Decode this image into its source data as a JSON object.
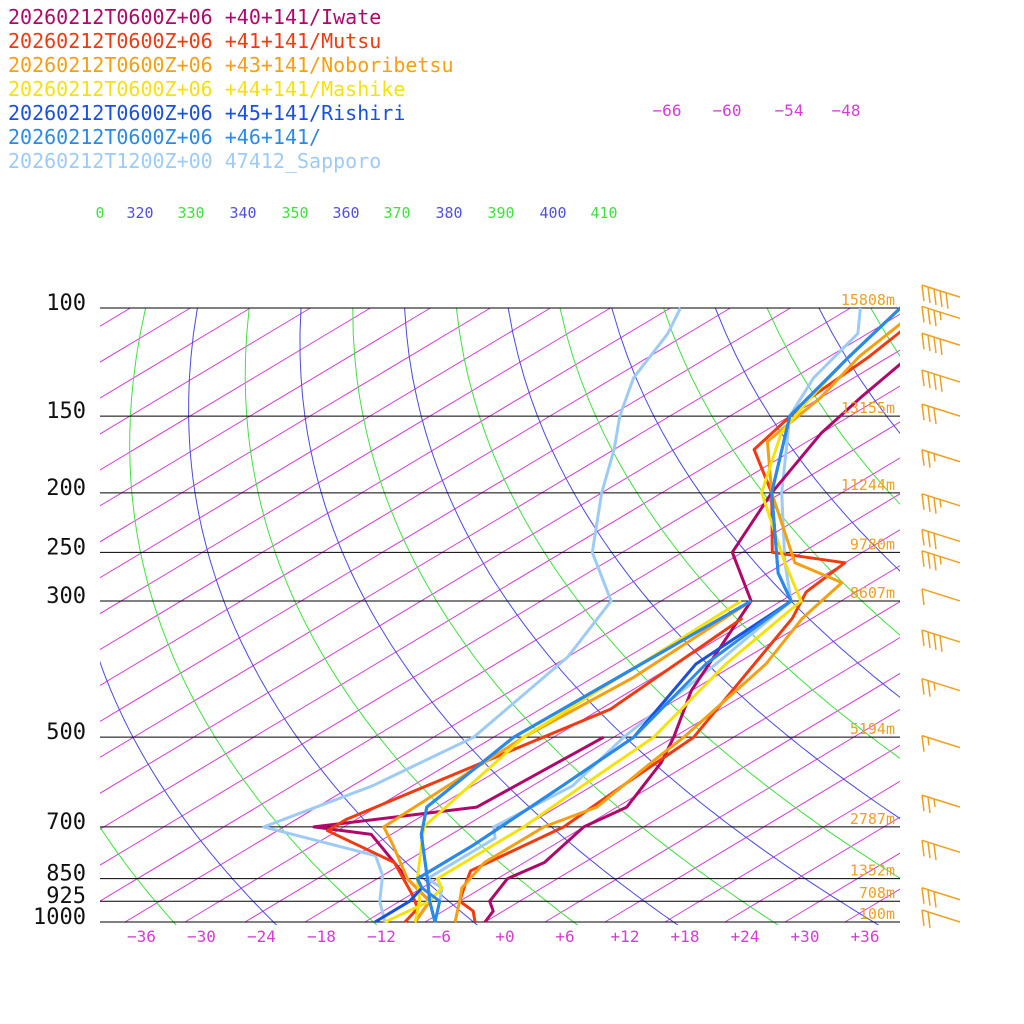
{
  "chart_data": {
    "type": "line",
    "subtype": "skew-t log-p sounding",
    "legend": [
      {
        "label": "20260212T0600Z+06 +40+141/Iwate",
        "color": "#b0086a"
      },
      {
        "label": "20260212T0600Z+06 +41+141/Mutsu",
        "color": "#f03a10"
      },
      {
        "label": "20260212T0600Z+06 +43+141/Noboribetsu",
        "color": "#f5a010"
      },
      {
        "label": "20260212T0600Z+06 +44+141/Mashike",
        "color": "#f5e20c"
      },
      {
        "label": "20260212T0600Z+06 +45+141/Rishiri",
        "color": "#1a50e0"
      },
      {
        "label": "20260212T0600Z+06 +46+141/",
        "color": "#2a8ae8"
      },
      {
        "label": "20260212T1200Z+00 47412_Sapporo",
        "color": "#9ecbf5"
      }
    ],
    "pressure_levels": [
      {
        "p": 100,
        "label": "100",
        "height": "15808m"
      },
      {
        "p": 150,
        "label": "150",
        "height": "13155m"
      },
      {
        "p": 200,
        "label": "200",
        "height": "11244m"
      },
      {
        "p": 250,
        "label": "250",
        "height": "9780m"
      },
      {
        "p": 300,
        "label": "300",
        "height": "8607m"
      },
      {
        "p": 500,
        "label": "500",
        "height": "5194m"
      },
      {
        "p": 700,
        "label": "700",
        "height": "2787m"
      },
      {
        "p": 850,
        "label": "850",
        "height": "1352m"
      },
      {
        "p": 925,
        "label": "925",
        "height": "708m"
      },
      {
        "p": 1000,
        "label": "1000",
        "height": "100m"
      }
    ],
    "x_ticks": [
      "−36",
      "−30",
      "−24",
      "−18",
      "−12",
      "−6",
      "+0",
      "+6",
      "+12",
      "+18",
      "+24",
      "+30",
      "+36"
    ],
    "top_ticks": [
      "−66",
      "−60",
      "−54",
      "−48"
    ],
    "theta_labels": [
      {
        "text": "0",
        "color": "#3ee23e"
      },
      {
        "text": "320",
        "color": "#5050e0"
      },
      {
        "text": "330",
        "color": "#3ee23e"
      },
      {
        "text": "340",
        "color": "#5050e0"
      },
      {
        "text": "350",
        "color": "#3ee23e"
      },
      {
        "text": "360",
        "color": "#5050e0"
      },
      {
        "text": "370",
        "color": "#3ee23e"
      },
      {
        "text": "380",
        "color": "#5050e0"
      },
      {
        "text": "390",
        "color": "#3ee23e"
      },
      {
        "text": "400",
        "color": "#5050e0"
      },
      {
        "text": "410",
        "color": "#3ee23e"
      }
    ],
    "x_range": [
      -40,
      40
    ],
    "p_range": [
      100,
      1000
    ],
    "log_pressure": true,
    "series": [
      {
        "name": "20260212T0600Z+06 +40+141/Iwate",
        "color": "#b0086a",
        "temperature": [
          [
            -2,
            1000
          ],
          [
            -3,
            960
          ],
          [
            -5,
            925
          ],
          [
            -7,
            850
          ],
          [
            -6,
            800
          ],
          [
            -8,
            700
          ],
          [
            -7,
            650
          ],
          [
            -11,
            550
          ],
          [
            -14,
            500
          ],
          [
            -20,
            420
          ],
          [
            -29,
            300
          ],
          [
            -39,
            250
          ],
          [
            -45,
            200
          ],
          [
            -50,
            160
          ],
          [
            -52,
            140
          ],
          [
            -54,
            120
          ],
          [
            -58,
            100
          ],
          [
            -63,
            85
          ],
          [
            -77,
            60
          ],
          [
            -84,
            40
          ]
        ],
        "dewpoint": [
          [
            -9,
            1000
          ],
          [
            -11,
            925
          ],
          [
            -17,
            850
          ],
          [
            -28,
            720
          ],
          [
            -35,
            700
          ],
          [
            -22,
            650
          ],
          [
            -21,
            500
          ]
        ]
      },
      {
        "name": "20260212T0600Z+06 +41+141/Mutsu",
        "color": "#f03a10",
        "temperature": [
          [
            -3,
            1000
          ],
          [
            -5,
            960
          ],
          [
            -8,
            925
          ],
          [
            -10,
            875
          ],
          [
            -12,
            825
          ],
          [
            -10,
            700
          ],
          [
            -11,
            600
          ],
          [
            -12,
            500
          ],
          [
            -17,
            400
          ],
          [
            -22,
            320
          ],
          [
            -25,
            290
          ],
          [
            -26,
            260
          ],
          [
            -35,
            250
          ],
          [
            -45,
            200
          ],
          [
            -54,
            170
          ],
          [
            -57,
            140
          ],
          [
            -58,
            120
          ],
          [
            -60,
            100
          ],
          [
            -65,
            80
          ],
          [
            -80,
            45
          ]
        ],
        "dewpoint": [
          [
            -10,
            1000
          ],
          [
            -11,
            950
          ],
          [
            -14,
            900
          ],
          [
            -21,
            800
          ],
          [
            -33,
            710
          ],
          [
            -33,
            680
          ],
          [
            -25,
            450
          ],
          [
            -27,
            320
          ]
        ]
      },
      {
        "name": "20260212T0600Z+06 +43+141/Noboribetsu",
        "color": "#f5a010",
        "temperature": [
          [
            -5,
            1000
          ],
          [
            -8,
            925
          ],
          [
            -10,
            880
          ],
          [
            -12,
            800
          ],
          [
            -12,
            700
          ],
          [
            -10,
            650
          ],
          [
            -12,
            550
          ],
          [
            -13,
            500
          ],
          [
            -17,
            380
          ],
          [
            -21,
            320
          ],
          [
            -23,
            280
          ],
          [
            -31,
            260
          ],
          [
            -45,
            200
          ],
          [
            -54,
            165
          ],
          [
            -56,
            140
          ],
          [
            -59,
            120
          ],
          [
            -61,
            100
          ],
          [
            -66,
            80
          ],
          [
            -81,
            45
          ]
        ],
        "dewpoint": [
          [
            -9,
            1000
          ],
          [
            -11,
            925
          ],
          [
            -17,
            850
          ],
          [
            -24,
            750
          ],
          [
            -28,
            700
          ],
          [
            -29,
            500
          ],
          [
            -28,
            400
          ],
          [
            -29,
            300
          ]
        ]
      },
      {
        "name": "20260212T0600Z+06 +44+141/Mashike",
        "color": "#f5e20c",
        "temperature": [
          [
            -12,
            1000
          ],
          [
            -11,
            925
          ],
          [
            -12,
            880
          ],
          [
            -14,
            850
          ],
          [
            -14,
            800
          ],
          [
            -14,
            700
          ],
          [
            -15,
            600
          ],
          [
            -16,
            500
          ],
          [
            -21,
            380
          ],
          [
            -24,
            300
          ],
          [
            -32,
            260
          ],
          [
            -46,
            200
          ],
          [
            -54,
            160
          ],
          [
            -57,
            140
          ],
          [
            -60,
            120
          ],
          [
            -63,
            100
          ],
          [
            -67,
            80
          ],
          [
            -80,
            45
          ]
        ],
        "dewpoint": [
          [
            -9,
            1000
          ],
          [
            -12,
            925
          ],
          [
            -16,
            850
          ],
          [
            -24,
            700
          ],
          [
            -29,
            500
          ],
          [
            -30,
            300
          ]
        ]
      },
      {
        "name": "20260212T0600Z+06 +45+141/Rishiri",
        "color": "#1a50e0",
        "temperature": [
          [
            -13,
            1000
          ],
          [
            -13,
            925
          ],
          [
            -14,
            880
          ],
          [
            -16,
            850
          ],
          [
            -16,
            750
          ],
          [
            -17,
            600
          ],
          [
            -18,
            500
          ],
          [
            -24,
            380
          ],
          [
            -25,
            300
          ],
          [
            -31,
            270
          ],
          [
            -45,
            200
          ],
          [
            -56,
            150
          ],
          [
            -60,
            120
          ],
          [
            -63,
            100
          ],
          [
            -70,
            70
          ],
          [
            -84,
            40
          ]
        ],
        "dewpoint": [
          [
            -7,
            1000
          ],
          [
            -11,
            925
          ],
          [
            -15,
            850
          ],
          [
            -23,
            720
          ],
          [
            -27,
            650
          ],
          [
            -30,
            500
          ],
          [
            -29,
            300
          ]
        ]
      },
      {
        "name": "20260212T0600Z+06 +46+141/",
        "color": "#2a8ae8",
        "temperature": [
          [
            -7,
            1000
          ],
          [
            -10,
            925
          ],
          [
            -14,
            880
          ],
          [
            -16,
            850
          ],
          [
            -16,
            750
          ],
          [
            -17,
            600
          ],
          [
            -18,
            500
          ],
          [
            -23,
            380
          ],
          [
            -25,
            300
          ],
          [
            -31,
            270
          ],
          [
            -45,
            200
          ],
          [
            -56,
            150
          ],
          [
            -60,
            120
          ],
          [
            -63,
            100
          ],
          [
            -70,
            70
          ],
          [
            -84,
            40
          ]
        ],
        "dewpoint": [
          [
            -7,
            1000
          ],
          [
            -11,
            925
          ],
          [
            -15,
            850
          ],
          [
            -23,
            720
          ],
          [
            -27,
            650
          ],
          [
            -30,
            500
          ],
          [
            -29,
            300
          ]
        ]
      },
      {
        "name": "20260212T1200Z+00 47412_Sapporo",
        "color": "#9ecbf5",
        "temperature": [
          [
            -7,
            1000
          ],
          [
            -10,
            925
          ],
          [
            -12,
            880
          ],
          [
            -15,
            850
          ],
          [
            -15,
            730
          ],
          [
            -17,
            700
          ],
          [
            -16,
            600
          ],
          [
            -19,
            500
          ],
          [
            -22,
            380
          ],
          [
            -25,
            300
          ],
          [
            -32,
            260
          ],
          [
            -44,
            200
          ],
          [
            -56,
            150
          ],
          [
            -60,
            130
          ],
          [
            -63,
            110
          ],
          [
            -67,
            100
          ]
        ],
        "dewpoint": [
          [
            -12,
            1000
          ],
          [
            -16,
            925
          ],
          [
            -20,
            840
          ],
          [
            -24,
            780
          ],
          [
            -40,
            700
          ],
          [
            -36,
            600
          ],
          [
            -34,
            500
          ],
          [
            -38,
            370
          ],
          [
            -43,
            300
          ],
          [
            -53,
            250
          ],
          [
            -62,
            200
          ],
          [
            -68,
            170
          ],
          [
            -73,
            150
          ],
          [
            -78,
            130
          ],
          [
            -82,
            110
          ],
          [
            -85,
            100
          ]
        ]
      }
    ],
    "wind_barbs": [
      {
        "p": 96,
        "knots": 50
      },
      {
        "p": 104,
        "knots": 35
      },
      {
        "p": 115,
        "knots": 40
      },
      {
        "p": 132,
        "knots": 40
      },
      {
        "p": 150,
        "knots": 30
      },
      {
        "p": 178,
        "knots": 25
      },
      {
        "p": 210,
        "knots": 35
      },
      {
        "p": 240,
        "knots": 30
      },
      {
        "p": 260,
        "knots": 35
      },
      {
        "p": 300,
        "knots": 10
      },
      {
        "p": 350,
        "knots": 40
      },
      {
        "p": 420,
        "knots": 25
      },
      {
        "p": 520,
        "knots": 15
      },
      {
        "p": 650,
        "knots": 25
      },
      {
        "p": 770,
        "knots": 30
      },
      {
        "p": 920,
        "knots": 30
      },
      {
        "p": 1000,
        "knots": 20
      }
    ]
  }
}
